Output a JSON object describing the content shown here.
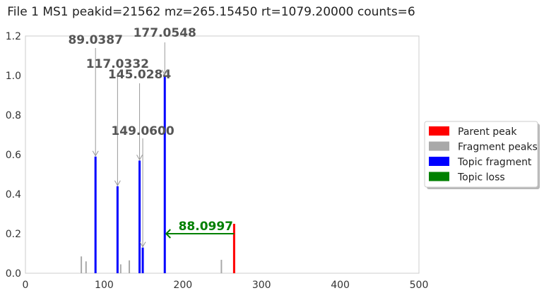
{
  "chart_data": {
    "type": "bar",
    "title": "File 1 MS1 peakid=21562 mz=265.15450 rt=1079.20000 counts=6",
    "xlabel": "",
    "ylabel": "",
    "xlim": [
      0,
      500
    ],
    "ylim": [
      0,
      1.2
    ],
    "xticks": [
      0,
      100,
      200,
      300,
      400,
      500
    ],
    "yticks": [
      0.0,
      0.2,
      0.4,
      0.6,
      0.8,
      1.0,
      1.2
    ],
    "xtick_labels": [
      "0",
      "100",
      "200",
      "300",
      "400",
      "500"
    ],
    "ytick_labels": [
      "0.0",
      "0.2",
      "0.4",
      "0.6",
      "0.8",
      "1.0",
      "1.2"
    ],
    "grid": false,
    "parent_peak": {
      "mz": 265.1545,
      "intensity": 0.25,
      "color": "#ff0000"
    },
    "fragment_peaks": [
      {
        "mz": 71.0,
        "intensity": 0.085
      },
      {
        "mz": 77.0,
        "intensity": 0.06
      },
      {
        "mz": 121.0,
        "intensity": 0.045
      },
      {
        "mz": 132.0,
        "intensity": 0.065
      },
      {
        "mz": 249.0,
        "intensity": 0.068
      }
    ],
    "fragment_color": "#a9a9a9",
    "topic_fragments": [
      {
        "mz": 89.0387,
        "intensity": 0.59,
        "label": "89.0387"
      },
      {
        "mz": 117.0332,
        "intensity": 0.44,
        "label": "117.0332"
      },
      {
        "mz": 145.0284,
        "intensity": 0.57,
        "label": "145.0284"
      },
      {
        "mz": 149.06,
        "intensity": 0.13,
        "label": "149.0600"
      },
      {
        "mz": 177.0548,
        "intensity": 1.0,
        "label": "177.0548"
      }
    ],
    "topic_color": "#0000ff",
    "topic_loss": {
      "from_mz": 265.1545,
      "to_mz": 177.0548,
      "y": 0.2,
      "label": "88.0997",
      "color": "#008000"
    },
    "legend": {
      "position": "right",
      "entries": [
        {
          "label": "Parent peak",
          "color": "#ff0000"
        },
        {
          "label": "Fragment peaks",
          "color": "#a9a9a9"
        },
        {
          "label": "Topic fragment",
          "color": "#0000ff"
        },
        {
          "label": "Topic loss",
          "color": "#008000"
        }
      ]
    }
  }
}
